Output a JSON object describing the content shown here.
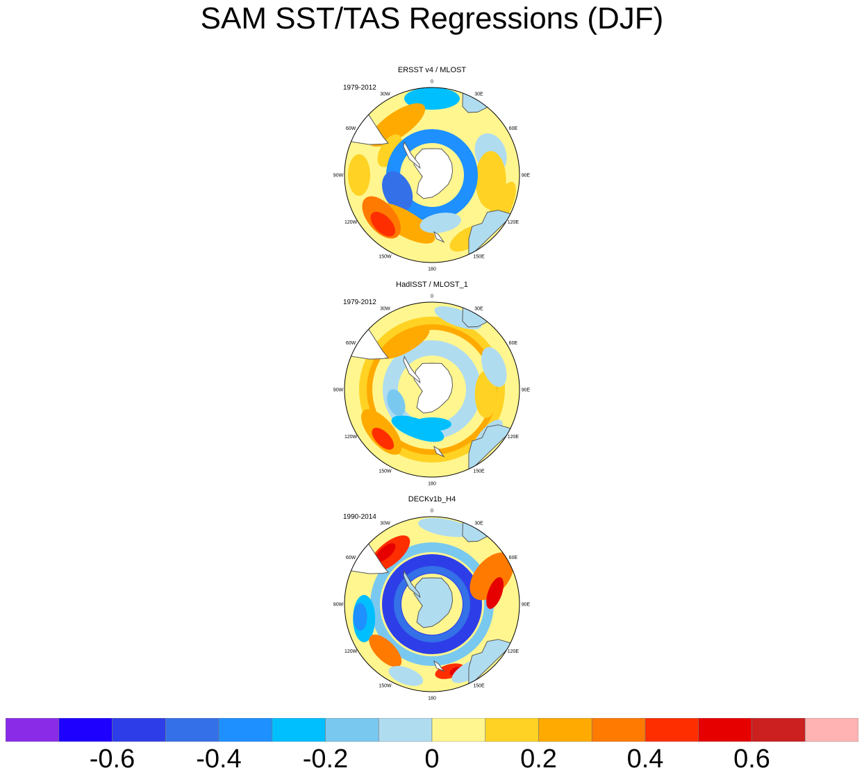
{
  "title": "SAM SST/TAS Regressions (DJF)",
  "panels": [
    {
      "title": "ERSST v4 / MLOST",
      "period": "1979-2012"
    },
    {
      "title": "HadISST / MLOST_1",
      "period": "1979-2012"
    },
    {
      "title": "DECKv1b_H4",
      "period": "1990-2014"
    }
  ],
  "longitude_labels": {
    "top": "0",
    "ne30": "30E",
    "e60": "60E",
    "e90": "90E",
    "e120": "120E",
    "e150": "150E",
    "bottom": "180",
    "w150": "150W",
    "w120": "120W",
    "w90": "90W",
    "w60": "60W",
    "w30": "30W"
  },
  "colorbar": {
    "colors": [
      "#8a2be8",
      "#1e00ff",
      "#2d3ee8",
      "#3470e8",
      "#1e90ff",
      "#00bfff",
      "#79c8f0",
      "#b0dcf0",
      "#fff68f",
      "#ffd224",
      "#ffaa00",
      "#ff7a00",
      "#ff2e00",
      "#e60000",
      "#cc1f1f",
      "#ffb3b3"
    ],
    "tick_labels": [
      "-0.6",
      "-0.4",
      "-0.2",
      "0",
      "0.2",
      "0.4",
      "0.6"
    ]
  },
  "chart_data": [
    {
      "type": "heatmap",
      "title": "ERSST v4 / MLOST",
      "period": "1979-2012",
      "projection": "south polar stereographic",
      "value_range": [
        -0.7,
        0.7
      ],
      "features": [
        {
          "region": "Weddell Sea / 0-30W high latitudes",
          "value": -0.25
        },
        {
          "region": "South Atlantic near 40W-60W",
          "value": 0.25
        },
        {
          "region": "Ring around Antarctica (Amundsen-Bellingshausen)",
          "value": -0.45
        },
        {
          "region": "South Pacific 120W-150W mid-latitudes",
          "value": 0.4
        },
        {
          "region": "Indian Ocean 60E-90E",
          "value": 0.15
        },
        {
          "region": "Tasman Sea / south of Australia",
          "value": 0.2
        }
      ]
    },
    {
      "type": "heatmap",
      "title": "HadISST / MLOST_1",
      "period": "1979-2012",
      "projection": "south polar stereographic",
      "value_range": [
        -0.7,
        0.7
      ],
      "features": [
        {
          "region": "Circumpolar band near 50S",
          "value": 0.25
        },
        {
          "region": "High-latitude Southern Ocean",
          "value": -0.3
        },
        {
          "region": "South Pacific 120W-150W",
          "value": 0.45
        },
        {
          "region": "Indian Ocean 60E-90E",
          "value": 0.2
        }
      ]
    },
    {
      "type": "heatmap",
      "title": "DECKv1b_H4",
      "period": "1990-2014",
      "projection": "south polar stereographic",
      "value_range": [
        -0.7,
        0.7
      ],
      "features": [
        {
          "region": "Ring around Antarctica",
          "value": -0.6
        },
        {
          "region": "South Atlantic 30W-60W",
          "value": 0.55
        },
        {
          "region": "Indian Ocean 60E-90E",
          "value": 0.55
        },
        {
          "region": "Pacific 90W-120W mid-latitudes",
          "value": -0.3
        },
        {
          "region": "South of New Zealand 150E-180",
          "value": 0.5
        }
      ]
    }
  ]
}
